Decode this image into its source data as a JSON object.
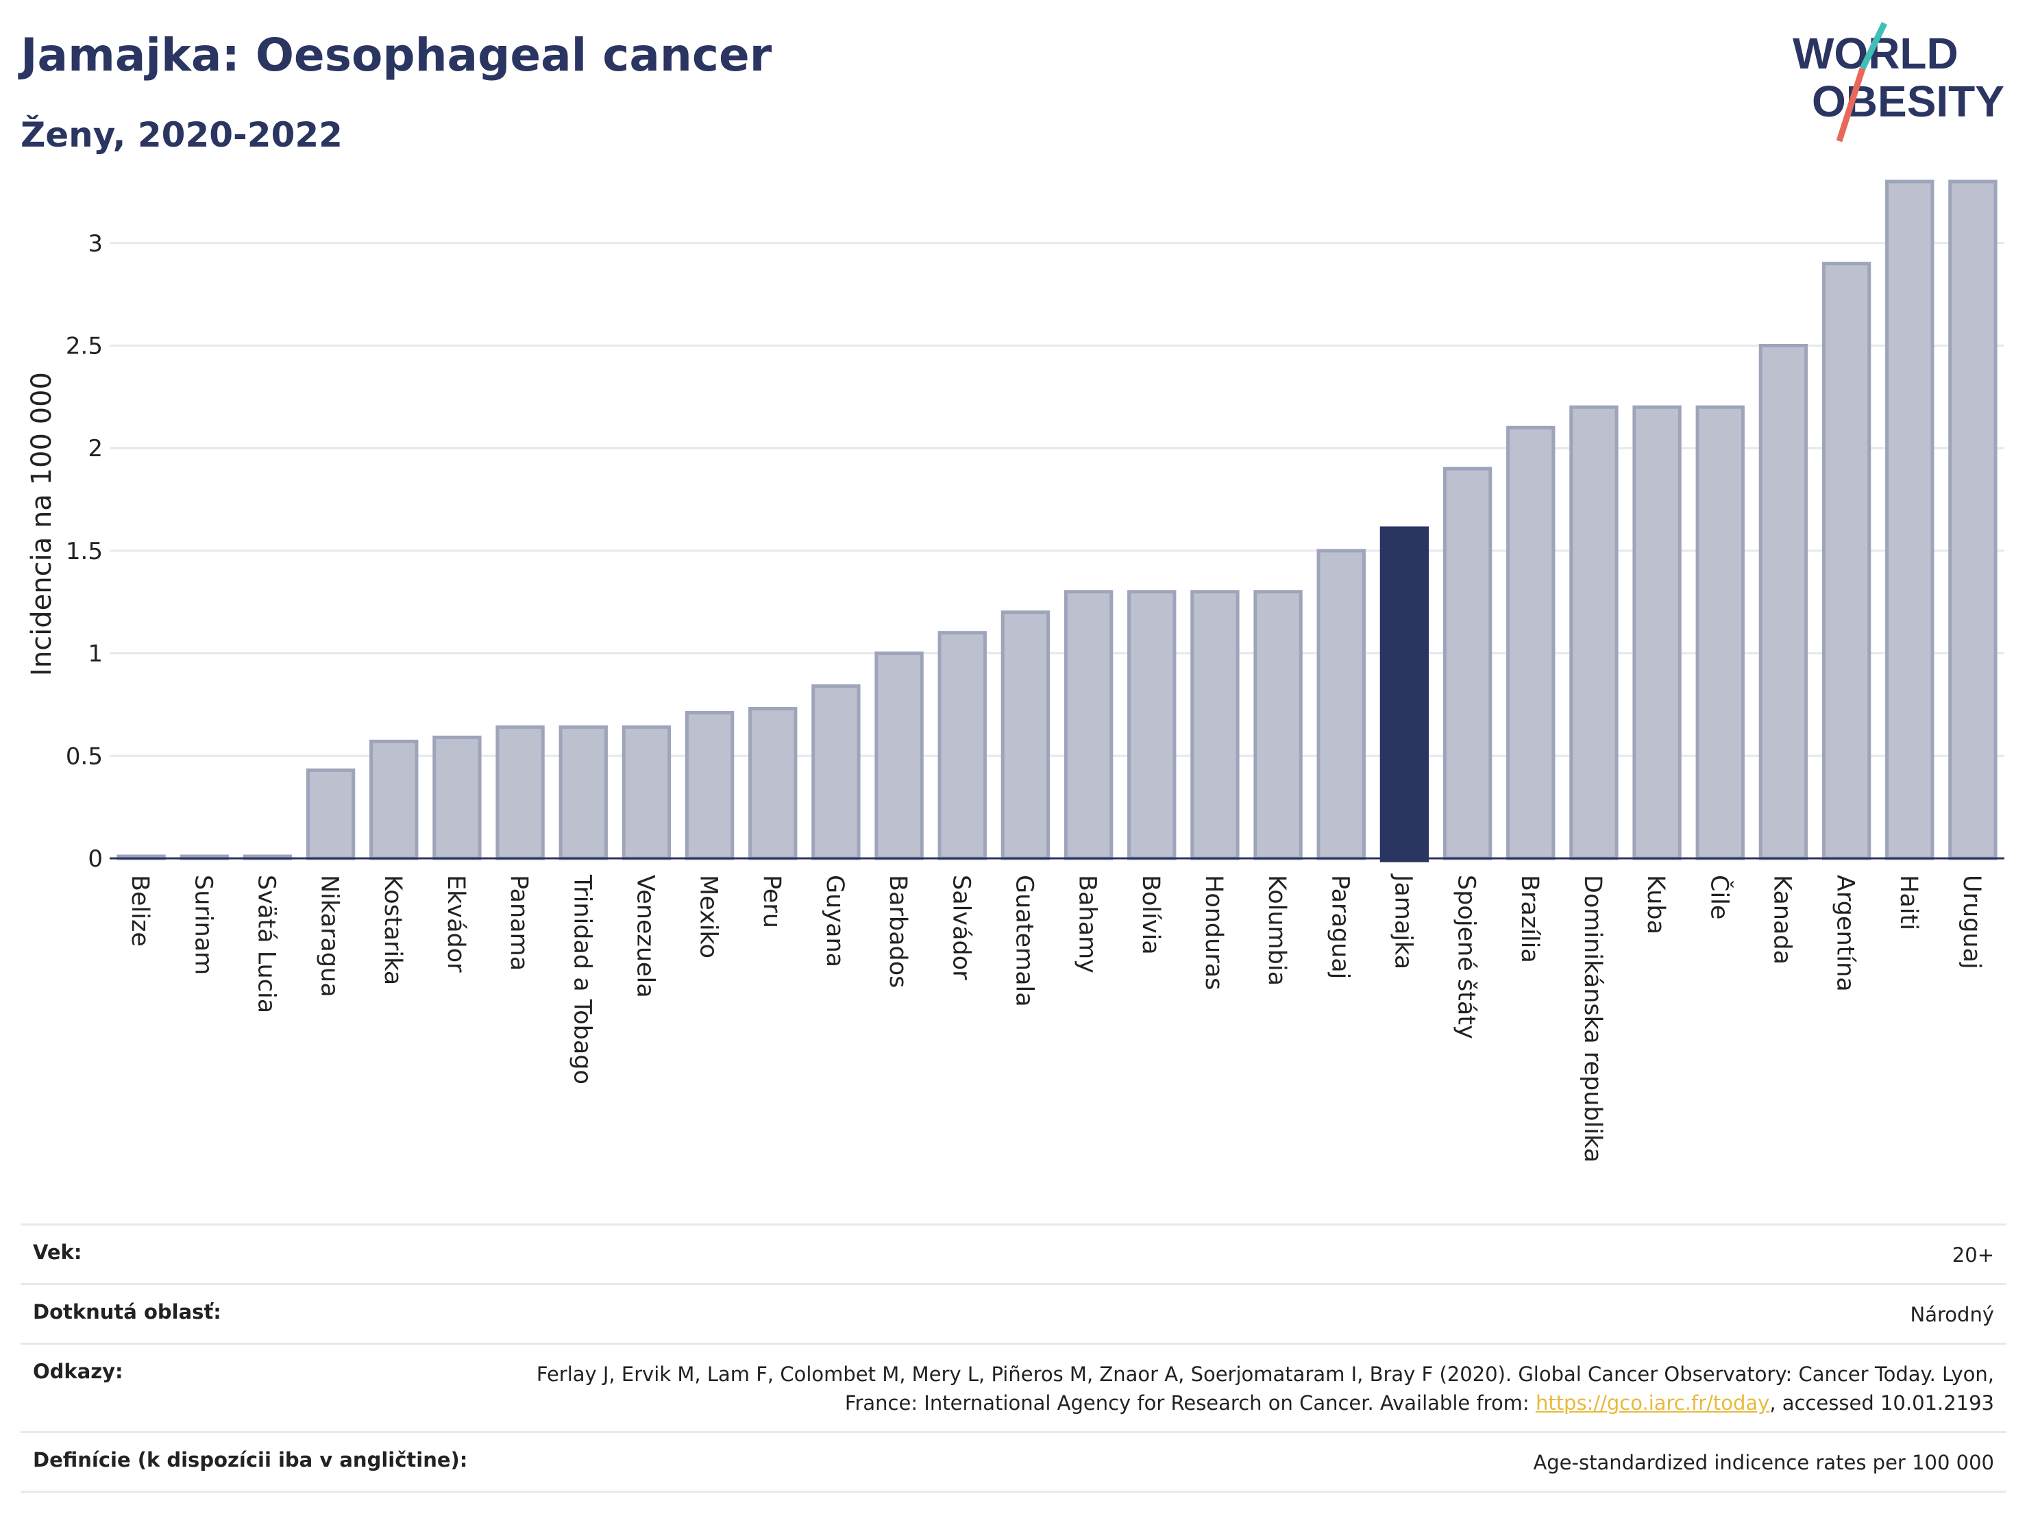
{
  "header": {
    "title": "Jamajka: Oesophageal cancer",
    "subtitle": "Ženy, 2020-2022"
  },
  "logo": {
    "line1": "WORLD",
    "line2": "OBESITY",
    "text_color": "#2b3561",
    "slash_colors": [
      "#3fbfb5",
      "#e8685a"
    ]
  },
  "colors": {
    "highlight": "#2b3561",
    "bar_fill": "#bdc1cf",
    "bar_stroke": "#9ea4ba"
  },
  "chart_data": {
    "type": "bar",
    "title": "Jamajka: Oesophageal cancer",
    "subtitle": "Ženy, 2020-2022",
    "ylabel": "Incidencia na 100 000",
    "xlabel": "",
    "ylim": [
      0,
      3.35
    ],
    "yticks": [
      0,
      0.5,
      1,
      1.5,
      2,
      2.5,
      3
    ],
    "ytick_labels": [
      "0",
      "0.5",
      "1",
      "1.5",
      "2",
      "2.5",
      "3"
    ],
    "grid": true,
    "highlight": "Jamajka",
    "categories": [
      "Belize",
      "Surinam",
      "Svätá Lucia",
      "Nikaragua",
      "Kostarika",
      "Ekvádor",
      "Panama",
      "Trinidad a Tobago",
      "Venezuela",
      "Mexiko",
      "Peru",
      "Guyana",
      "Barbados",
      "Salvádor",
      "Guatemala",
      "Bahamy",
      "Bolívia",
      "Honduras",
      "Kolumbia",
      "Paraguaj",
      "Jamajka",
      "Spojené štáty",
      "Brazília",
      "Dominikánska republika",
      "Kuba",
      "Čile",
      "Kanada",
      "Argentína",
      "Haiti",
      "Uruguaj"
    ],
    "values": [
      0.01,
      0.01,
      0.01,
      0.43,
      0.57,
      0.59,
      0.64,
      0.64,
      0.64,
      0.71,
      0.73,
      0.84,
      1.0,
      1.1,
      1.2,
      1.3,
      1.3,
      1.3,
      1.3,
      1.5,
      1.61,
      1.9,
      2.1,
      2.2,
      2.2,
      2.2,
      2.5,
      2.9,
      3.3,
      3.3
    ]
  },
  "info_table": [
    {
      "label": "Vek:",
      "value": "20+"
    },
    {
      "label": "Dotknutá oblasť:",
      "value": "Národný"
    },
    {
      "label": "Odkazy:",
      "value_before": "Ferlay J, Ervik M, Lam F, Colombet M, Mery L, Piñeros M, Znaor A, Soerjomataram I, Bray F (2020). Global Cancer Observatory: Cancer Today. Lyon, France: International Agency for Research on Cancer. Available from: ",
      "link": "https://gco.iarc.fr/today",
      "value_after": ", accessed 10.01.2193"
    },
    {
      "label": "Definície (k dispozícii iba v angličtine):",
      "value": "Age-standardized indicence rates per 100 000"
    }
  ]
}
